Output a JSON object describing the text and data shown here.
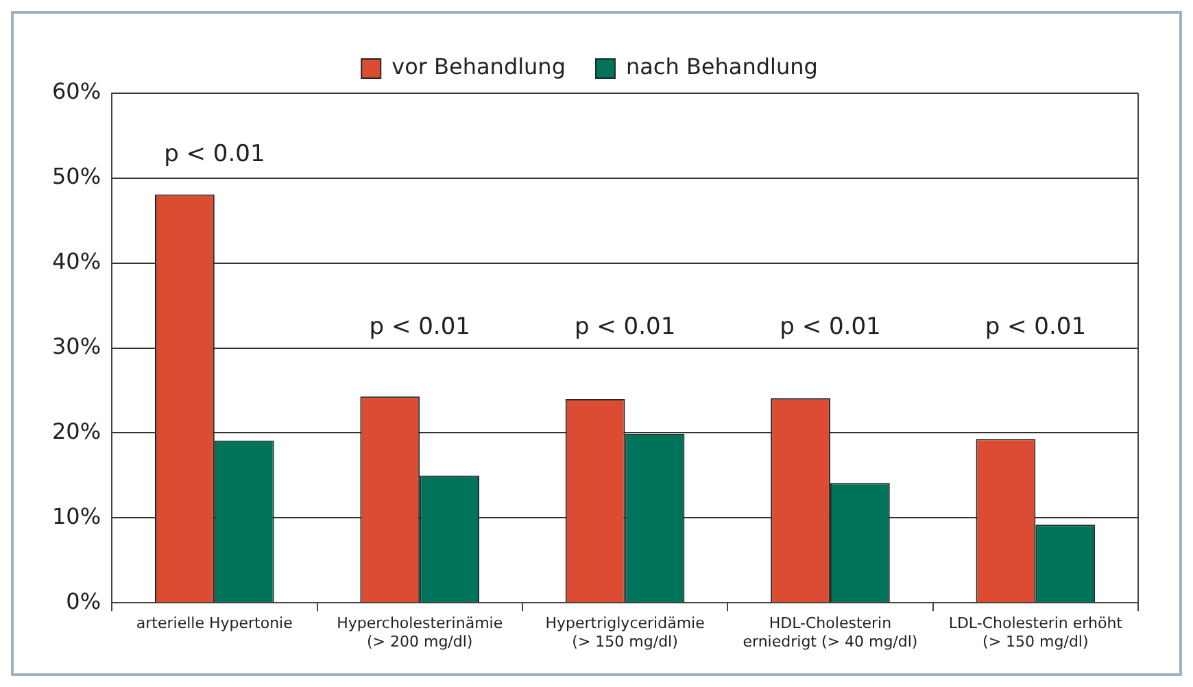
{
  "chart_data": {
    "type": "bar",
    "categories": [
      "arterielle Hypertonie",
      "Hypercholesterinämie\n(> 200 mg/dl)",
      "Hypertriglyceridämie\n(> 150 mg/dl)",
      "HDL-Cholesterin\nerniedrigt (> 40 mg/dl)",
      "LDL-Cholesterin erhöht\n(> 150 mg/dl)"
    ],
    "series": [
      {
        "name": "vor Behandlung",
        "color": "#db4c33",
        "values": [
          48.1,
          24.3,
          24.0,
          24.1,
          19.3
        ]
      },
      {
        "name": "nach Behandlung",
        "color": "#00745a",
        "values": [
          19.1,
          15.0,
          19.9,
          14.1,
          9.2
        ]
      }
    ],
    "ylim": [
      0,
      60
    ],
    "yticks": [
      {
        "value": 0,
        "label": "0%"
      },
      {
        "value": 10,
        "label": "10%"
      },
      {
        "value": 20,
        "label": "20%"
      },
      {
        "value": 30,
        "label": "30%"
      },
      {
        "value": 40,
        "label": "40%"
      },
      {
        "value": 50,
        "label": "50%"
      },
      {
        "value": 60,
        "label": "60%"
      }
    ],
    "grid": "y",
    "legend": "top",
    "annotations": [
      "p < 0.01",
      "p < 0.01",
      "p < 0.01",
      "p < 0.01",
      "p < 0.01"
    ]
  }
}
